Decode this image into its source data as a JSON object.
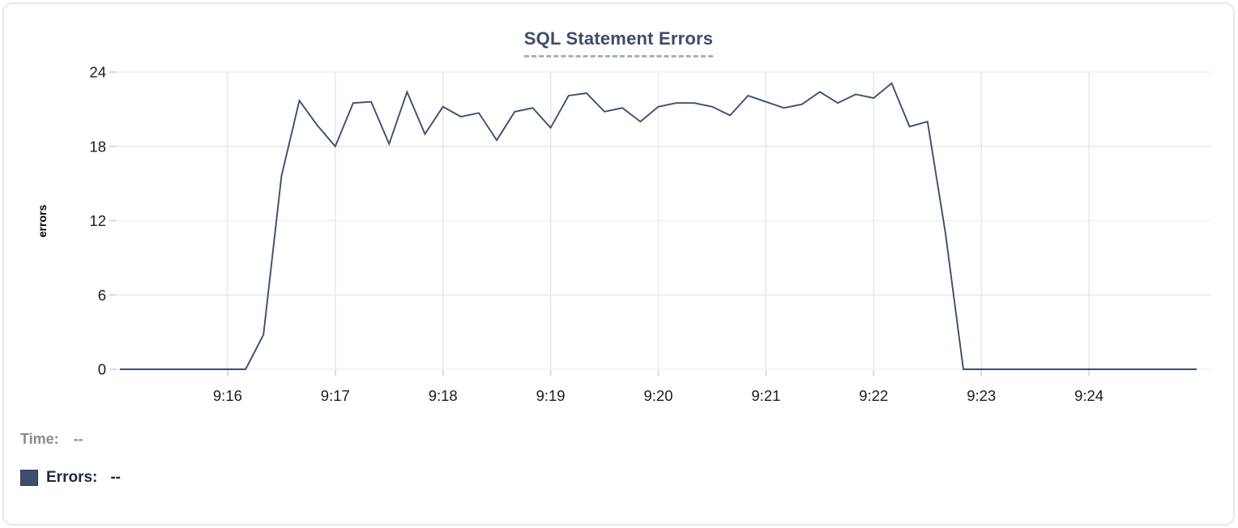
{
  "card": {
    "title": "SQL Statement Errors"
  },
  "tooltip": {
    "time_label": "Time:",
    "time_value": "--",
    "errors_label": "Errors:",
    "errors_value": "--"
  },
  "colors": {
    "line": "#3e4e6e",
    "title": "#3d4c6b",
    "swatch": "#3d4e6e",
    "grid": "#e8e8e8",
    "tick_stub": "#d9d9d9",
    "axis_text": "#1c1c1e",
    "muted_text": "#8b8b8d",
    "dark_text": "#1d2945",
    "card_border": "#e5e7ea",
    "title_underline": "#a6b0c3"
  },
  "chart_data": {
    "type": "line",
    "title": "SQL Statement Errors",
    "xlabel": "",
    "ylabel": "errors",
    "ylim": [
      0,
      24
    ],
    "yticks": [
      0,
      6,
      12,
      18,
      24
    ],
    "xticks": [
      "9:16",
      "9:17",
      "9:18",
      "9:19",
      "9:20",
      "9:21",
      "9:22",
      "9:23",
      "9:24"
    ],
    "x_range": [
      "9:15:00",
      "9:25:00"
    ],
    "grid": true,
    "legend_position": "none",
    "series": [
      {
        "name": "Errors",
        "times": [
          "9:15:00",
          "9:15:10",
          "9:15:20",
          "9:15:30",
          "9:15:40",
          "9:15:50",
          "9:16:00",
          "9:16:10",
          "9:16:20",
          "9:16:30",
          "9:16:40",
          "9:16:50",
          "9:17:00",
          "9:17:10",
          "9:17:20",
          "9:17:30",
          "9:17:40",
          "9:17:50",
          "9:18:00",
          "9:18:10",
          "9:18:20",
          "9:18:30",
          "9:18:40",
          "9:18:50",
          "9:19:00",
          "9:19:10",
          "9:19:20",
          "9:19:30",
          "9:19:40",
          "9:19:50",
          "9:20:00",
          "9:20:10",
          "9:20:20",
          "9:20:30",
          "9:20:40",
          "9:20:50",
          "9:21:00",
          "9:21:10",
          "9:21:20",
          "9:21:30",
          "9:21:40",
          "9:21:50",
          "9:22:00",
          "9:22:10",
          "9:22:20",
          "9:22:30",
          "9:22:40",
          "9:22:50",
          "9:23:00",
          "9:23:10",
          "9:23:20",
          "9:23:30",
          "9:23:40",
          "9:23:50",
          "9:24:00",
          "9:24:10",
          "9:24:20",
          "9:24:30",
          "9:24:40",
          "9:24:50",
          "9:25:00"
        ],
        "values": [
          0,
          0,
          0,
          0,
          0,
          0,
          0,
          0,
          2.8,
          15.6,
          21.7,
          19.7,
          18,
          21.5,
          21.6,
          18.2,
          22.4,
          19,
          21.2,
          20.4,
          20.7,
          18.5,
          20.8,
          21.1,
          19.5,
          22.1,
          22.3,
          20.8,
          21.1,
          20,
          21.2,
          21.5,
          21.5,
          21.2,
          20.5,
          22.1,
          21.6,
          21.1,
          21.4,
          22.4,
          21.5,
          22.2,
          21.9,
          23.1,
          19.6,
          20,
          11,
          0,
          0,
          0,
          0,
          0,
          0,
          0,
          0,
          0,
          0,
          0,
          0,
          0,
          0
        ]
      }
    ]
  }
}
